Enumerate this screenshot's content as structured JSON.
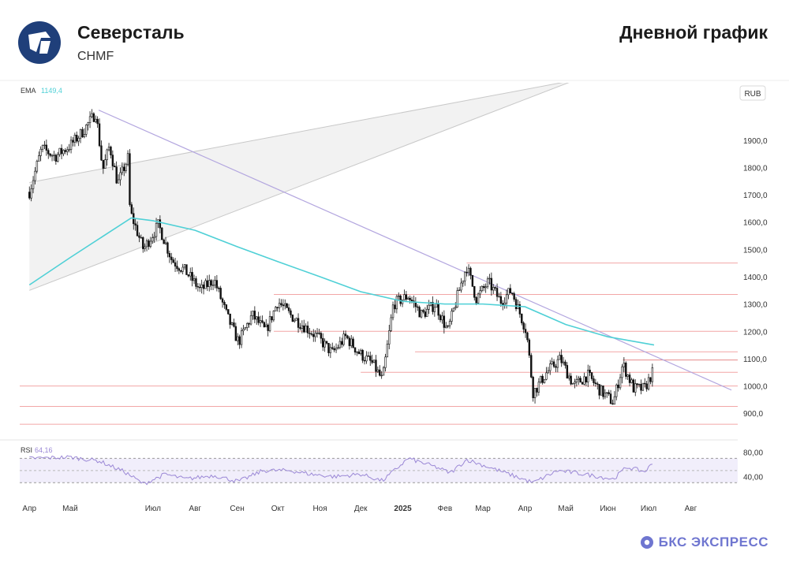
{
  "header": {
    "company": "Северсталь",
    "ticker": "CHMF",
    "chart_title": "Дневной график",
    "logo_icon": "severstal-logo-icon"
  },
  "branding": {
    "text": "БКС ЭКСПРЕСС",
    "icon": "bks-logo-icon"
  },
  "colors": {
    "ema": "#4fd0d6",
    "rsi": "#9b88d6",
    "trendline": "#b3a6df",
    "levels": "#f2a6a6",
    "channel": "#c8c8c8",
    "brand": "#6f76d0",
    "logo": "#1f3f7a"
  },
  "chart_data": [
    {
      "type": "candlestick",
      "currency": "RUB",
      "ema_label": "EMA",
      "ema_value": "1149,4",
      "y_ticks": [
        "1900,0",
        "1800,0",
        "1700,0",
        "1600,0",
        "1500,0",
        "1400,0",
        "1300,0",
        "1200,0",
        "1100,0",
        "1000,0",
        "900,0"
      ],
      "ylim": [
        840,
        2110
      ],
      "x_ticks": [
        "Апр",
        "Май",
        "Июл",
        "Авг",
        "Сен",
        "Окт",
        "Ноя",
        "Дек",
        "2025",
        "Фев",
        "Мар",
        "Апр",
        "Май",
        "Июн",
        "Июл",
        "Авг"
      ],
      "horizontal_levels": [
        1450,
        1335,
        1200,
        1125,
        1050,
        1000,
        925,
        860
      ],
      "price_path": [
        [
          "2024-04-01",
          1710
        ],
        [
          "2024-04-10",
          1870
        ],
        [
          "2024-04-20",
          1840
        ],
        [
          "2024-05-01",
          1880
        ],
        [
          "2024-05-10",
          1930
        ],
        [
          "2024-05-20",
          2000
        ],
        [
          "2024-05-25",
          1790
        ],
        [
          "2024-05-30",
          1880
        ],
        [
          "2024-06-05",
          1740
        ],
        [
          "2024-06-13",
          1840
        ],
        [
          "2024-06-14",
          1640
        ],
        [
          "2024-06-24",
          1500
        ],
        [
          "2024-07-05",
          1590
        ],
        [
          "2024-07-15",
          1460
        ],
        [
          "2024-07-25",
          1420
        ],
        [
          "2024-08-05",
          1350
        ],
        [
          "2024-08-15",
          1390
        ],
        [
          "2024-08-25",
          1250
        ],
        [
          "2024-09-02",
          1160
        ],
        [
          "2024-09-12",
          1260
        ],
        [
          "2024-09-22",
          1200
        ],
        [
          "2024-10-01",
          1310
        ],
        [
          "2024-10-10",
          1260
        ],
        [
          "2024-10-20",
          1220
        ],
        [
          "2024-10-30",
          1180
        ],
        [
          "2024-11-10",
          1120
        ],
        [
          "2024-11-20",
          1180
        ],
        [
          "2024-11-30",
          1120
        ],
        [
          "2024-12-10",
          1080
        ],
        [
          "2024-12-17",
          1020
        ],
        [
          "2024-12-25",
          1300
        ],
        [
          "2025-01-05",
          1330
        ],
        [
          "2025-01-15",
          1260
        ],
        [
          "2025-01-25",
          1300
        ],
        [
          "2025-02-03",
          1200
        ],
        [
          "2025-02-12",
          1360
        ],
        [
          "2025-02-17",
          1440
        ],
        [
          "2025-02-24",
          1320
        ],
        [
          "2025-03-05",
          1380
        ],
        [
          "2025-03-14",
          1310
        ],
        [
          "2025-03-22",
          1350
        ],
        [
          "2025-04-02",
          1200
        ],
        [
          "2025-04-07",
          975
        ],
        [
          "2025-04-17",
          1050
        ],
        [
          "2025-04-27",
          1100
        ],
        [
          "2025-05-07",
          1000
        ],
        [
          "2025-05-17",
          1040
        ],
        [
          "2025-05-27",
          980
        ],
        [
          "2025-06-05",
          940
        ],
        [
          "2025-06-12",
          1080
        ],
        [
          "2025-06-20",
          990
        ],
        [
          "2025-06-28",
          990
        ],
        [
          "2025-07-05",
          1060
        ]
      ],
      "ema_path": [
        [
          "2024-04-01",
          1370
        ],
        [
          "2024-05-01",
          1470
        ],
        [
          "2024-06-01",
          1570
        ],
        [
          "2024-06-15",
          1615
        ],
        [
          "2024-07-01",
          1605
        ],
        [
          "2024-08-01",
          1570
        ],
        [
          "2024-09-01",
          1510
        ],
        [
          "2024-10-01",
          1455
        ],
        [
          "2024-11-01",
          1400
        ],
        [
          "2024-12-01",
          1345
        ],
        [
          "2025-01-01",
          1310
        ],
        [
          "2025-02-01",
          1300
        ],
        [
          "2025-03-01",
          1300
        ],
        [
          "2025-04-01",
          1290
        ],
        [
          "2025-05-01",
          1225
        ],
        [
          "2025-06-01",
          1180
        ],
        [
          "2025-07-05",
          1150
        ]
      ],
      "trendline": [
        [
          "2024-05-22",
          2010
        ],
        [
          "2025-08-31",
          985
        ]
      ],
      "channel_upper": [
        [
          "2024-04-01",
          1745
        ],
        [
          "2025-05-08",
          2120
        ]
      ],
      "channel_lower": [
        [
          "2024-04-01",
          1350
        ],
        [
          "2025-05-08",
          2120
        ]
      ],
      "rsi": {
        "label": "RSI",
        "value": "64,16",
        "y_ticks": [
          "80,00",
          "40,00"
        ],
        "ylim": [
          20,
          90
        ],
        "bands": [
          70,
          30
        ],
        "midline": 50,
        "path": [
          [
            "2024-04-01",
            70
          ],
          [
            "2024-05-01",
            72
          ],
          [
            "2024-05-22",
            66
          ],
          [
            "2024-06-10",
            48
          ],
          [
            "2024-06-24",
            28
          ],
          [
            "2024-07-10",
            44
          ],
          [
            "2024-07-25",
            36
          ],
          [
            "2024-08-15",
            42
          ],
          [
            "2024-09-02",
            32
          ],
          [
            "2024-09-20",
            50
          ],
          [
            "2024-10-10",
            50
          ],
          [
            "2024-10-25",
            44
          ],
          [
            "2024-11-12",
            40
          ],
          [
            "2024-12-01",
            44
          ],
          [
            "2024-12-17",
            33
          ],
          [
            "2025-01-05",
            70
          ],
          [
            "2025-01-25",
            56
          ],
          [
            "2025-02-05",
            46
          ],
          [
            "2025-02-17",
            68
          ],
          [
            "2025-03-10",
            52
          ],
          [
            "2025-04-07",
            30
          ],
          [
            "2025-04-25",
            50
          ],
          [
            "2025-05-15",
            44
          ],
          [
            "2025-06-05",
            36
          ],
          [
            "2025-06-15",
            56
          ],
          [
            "2025-06-28",
            48
          ],
          [
            "2025-07-05",
            64
          ]
        ]
      }
    }
  ]
}
